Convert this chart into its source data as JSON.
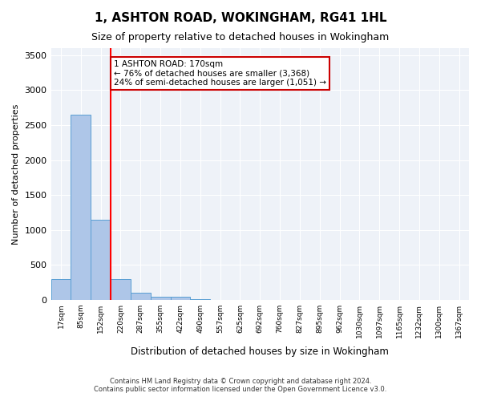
{
  "title": "1, ASHTON ROAD, WOKINGHAM, RG41 1HL",
  "subtitle": "Size of property relative to detached houses in Wokingham",
  "xlabel": "Distribution of detached houses by size in Wokingham",
  "ylabel": "Number of detached properties",
  "footer_line1": "Contains HM Land Registry data © Crown copyright and database right 2024.",
  "footer_line2": "Contains public sector information licensed under the Open Government Licence v3.0.",
  "bar_values": [
    300,
    2650,
    1150,
    300,
    100,
    50,
    40,
    5,
    2,
    2,
    1,
    1,
    1,
    1,
    0,
    0,
    0,
    0,
    0,
    0,
    0
  ],
  "bin_labels": [
    "17sqm",
    "85sqm",
    "152sqm",
    "220sqm",
    "287sqm",
    "355sqm",
    "422sqm",
    "490sqm",
    "557sqm",
    "625sqm",
    "692sqm",
    "760sqm",
    "827sqm",
    "895sqm",
    "962sqm",
    "1030sqm",
    "1097sqm",
    "1165sqm",
    "1232sqm",
    "1300sqm",
    "1367sqm"
  ],
  "bar_color": "#aec6e8",
  "bar_edge_color": "#5a9fd4",
  "background_color": "#eef2f8",
  "grid_color": "#ffffff",
  "ylim": [
    0,
    3600
  ],
  "yticks": [
    0,
    500,
    1000,
    1500,
    2000,
    2500,
    3000,
    3500
  ],
  "red_line_x": 2.5,
  "annotation_text": "1 ASHTON ROAD: 170sqm\n← 76% of detached houses are smaller (3,368)\n24% of semi-detached houses are larger (1,051) →",
  "annotation_box_color": "#cc0000",
  "figsize": [
    6.0,
    5.0
  ],
  "dpi": 100
}
